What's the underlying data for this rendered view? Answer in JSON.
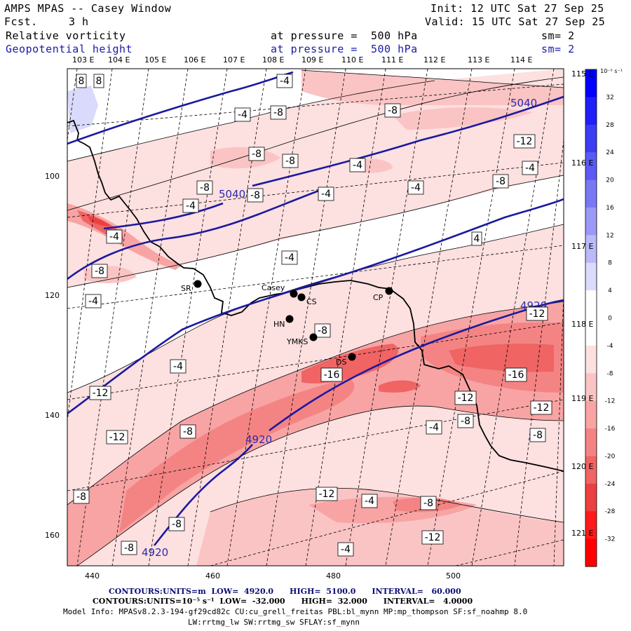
{
  "header": {
    "title": "AMPS MPAS -- Casey Window",
    "fcst_label": "Fcst.",
    "fcst_value": "3 h",
    "init": "Init: 12 UTC Sat 27 Sep 25",
    "valid": "Valid: 15 UTC Sat 27 Sep 25",
    "field1_name": "Relative vorticity",
    "field1_level": "at pressure =  500 hPa",
    "field1_sm": "sm= 2",
    "field2_name": "Geopotential height",
    "field2_level": "at pressure =  500 hPa",
    "field2_sm": "sm= 2"
  },
  "longitude_labels_top": [
    "103 E",
    "104 E",
    "105 E",
    "106 E",
    "107 E",
    "108 E",
    "109 E",
    "110 E",
    "111 E",
    "112 E",
    "113 E",
    "114 E"
  ],
  "longitude_labels_right": [
    "115 E",
    "116 E",
    "117 E",
    "118 E",
    "119 E",
    "120 E",
    "121 E"
  ],
  "axes": {
    "x_ticks": [
      "440",
      "460",
      "480",
      "500"
    ],
    "y_ticks": [
      "100",
      "120",
      "140",
      "160"
    ]
  },
  "colorbar": {
    "unit": "10⁻⁵ s⁻¹",
    "labels": [
      "32",
      "28",
      "24",
      "20",
      "16",
      "12",
      "8",
      "4",
      "0",
      "-4",
      "-8",
      "-12",
      "-16",
      "-20",
      "-24",
      "-28",
      "-32"
    ],
    "colors": [
      "#0000ff",
      "#1f1ff8",
      "#3c3cf4",
      "#5a5af4",
      "#7878f4",
      "#9a9af6",
      "#babaf8",
      "#dadafc",
      "#ffffff",
      "#ffffff",
      "#fde0e0",
      "#fbc4c4",
      "#f8a4a4",
      "#f48484",
      "#f06464",
      "#ec4040",
      "#ff1a1a",
      "#ff0000"
    ]
  },
  "stations": [
    {
      "id": "SR",
      "name": "SR"
    },
    {
      "id": "Casey",
      "name": "Casey"
    },
    {
      "id": "CS",
      "name": "CS"
    },
    {
      "id": "HN",
      "name": "HN"
    },
    {
      "id": "YMKS",
      "name": "YMKS"
    },
    {
      "id": "CP",
      "name": "CP"
    },
    {
      "id": "DS",
      "name": "DS"
    }
  ],
  "height_contour_labels": [
    "5040",
    "5040",
    "4920",
    "4920",
    "4920"
  ],
  "vorticity_contour_labels": [
    "8",
    "8",
    "-4",
    "-4",
    "-8",
    "-8",
    "-12",
    "-8",
    "-8",
    "-4",
    "-4",
    "-8",
    "-8",
    "-4",
    "-4",
    "-8",
    "-4",
    "4",
    "-4",
    "-8",
    "-4",
    "-4",
    "-8",
    "-12",
    "-16",
    "-16",
    "-12",
    "-12",
    "-8",
    "-4",
    "-8",
    "-12",
    "-8",
    "-8",
    "-4",
    "-8",
    "-12",
    "-8",
    "-8",
    "-12",
    "-4",
    "-4",
    "-12"
  ],
  "footer": {
    "line1_label": "CONTOURS:",
    "line1_text": "UNITS=m  LOW=  4920.0      HIGH=  5100.0      INTERVAL=   60.000",
    "line2_label": "CONTOURS:",
    "line2_text": "UNITS=10⁻⁵ s⁻¹  LOW=  -32.000      HIGH=  32.000      INTERVAL=   4.0000",
    "model_info": "Model Info: MPASv8.2.3-194-gf29cd82c CU:cu_grell_freitas PBL:bl_mynn MP:mp_thompson SF:sf_noahmp 8.0",
    "model_info2": "LW:rrtmg_lw SW:rrtmg_sw SFLAY:sf_mynn"
  }
}
